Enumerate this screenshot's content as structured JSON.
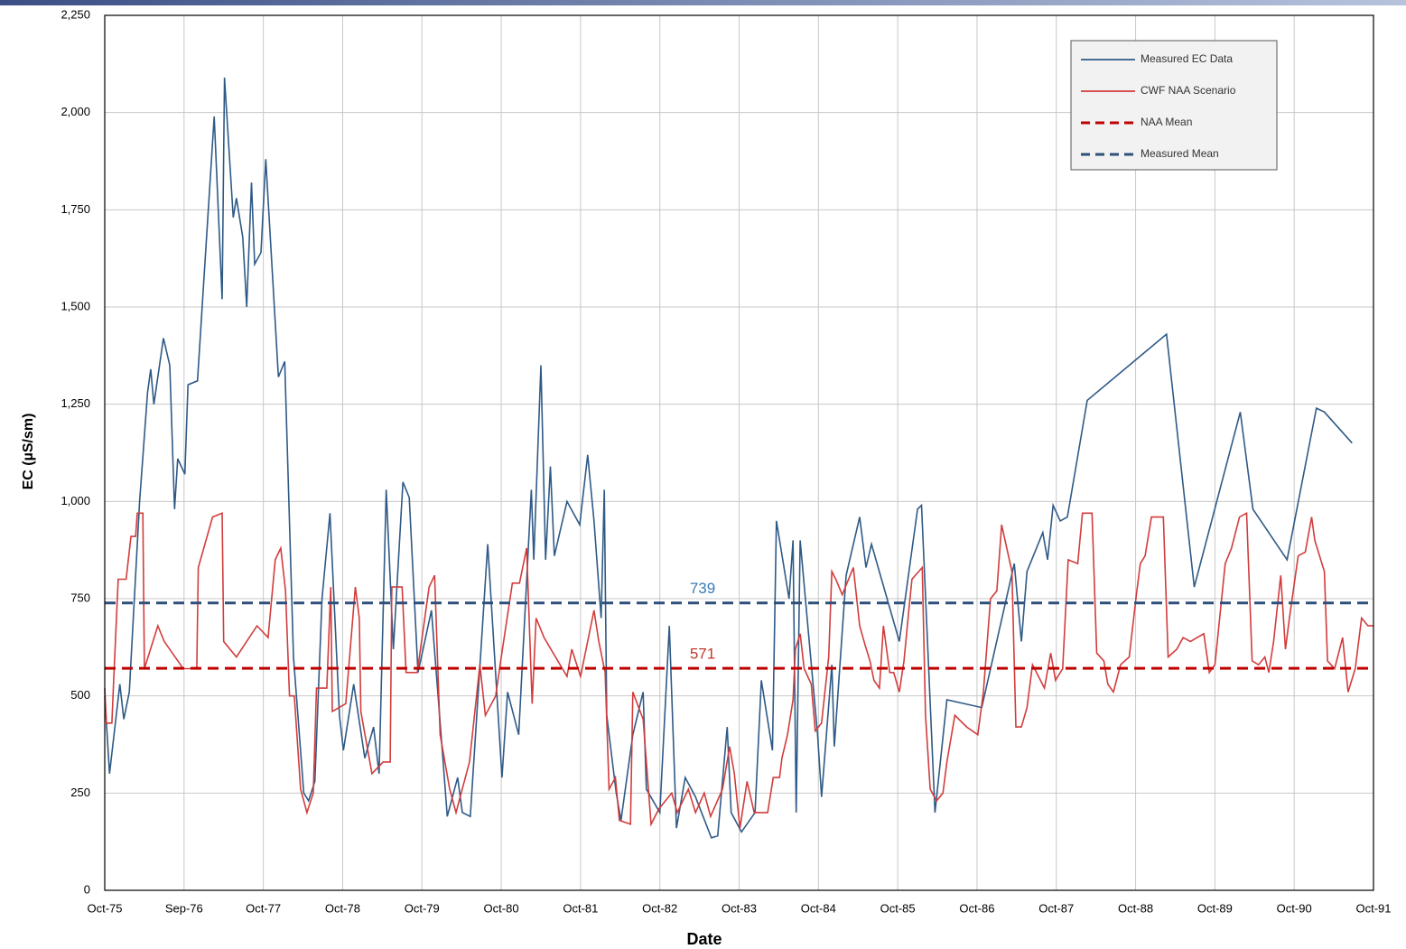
{
  "chart_data": {
    "type": "line",
    "xlabel": "Date",
    "ylabel": "EC  (µS/sm)",
    "xlim": [
      1975.75,
      1991.75
    ],
    "xticks": [
      {
        "value": 1975.75,
        "label": "Oct-75"
      },
      {
        "value": 1976.75,
        "label": "Sep-76"
      },
      {
        "value": 1977.75,
        "label": "Oct-77"
      },
      {
        "value": 1978.75,
        "label": "Oct-78"
      },
      {
        "value": 1979.75,
        "label": "Oct-79"
      },
      {
        "value": 1980.75,
        "label": "Oct-80"
      },
      {
        "value": 1981.75,
        "label": "Oct-81"
      },
      {
        "value": 1982.75,
        "label": "Oct-82"
      },
      {
        "value": 1983.75,
        "label": "Oct-83"
      },
      {
        "value": 1984.75,
        "label": "Oct-84"
      },
      {
        "value": 1985.75,
        "label": "Oct-85"
      },
      {
        "value": 1986.75,
        "label": "Oct-86"
      },
      {
        "value": 1987.75,
        "label": "Oct-87"
      },
      {
        "value": 1988.75,
        "label": "Oct-88"
      },
      {
        "value": 1989.75,
        "label": "Oct-89"
      },
      {
        "value": 1990.75,
        "label": "Oct-90"
      },
      {
        "value": 1991.75,
        "label": "Oct-91"
      }
    ],
    "ylim": [
      0,
      2250
    ],
    "yticks": [
      0,
      250,
      500,
      750,
      {
        "value": 1000,
        "label": "1,000"
      },
      {
        "value": 1250,
        "label": "1,250"
      },
      {
        "value": 1500,
        "label": "1,500"
      },
      {
        "value": 1750,
        "label": "1,750"
      },
      {
        "value": 2000,
        "label": "2,000"
      },
      {
        "value": 2250,
        "label": "2,250"
      }
    ],
    "grid": true,
    "legend": "upper right",
    "series": [
      {
        "name": "Measured EC Data",
        "color": "#2f5a86",
        "x": [
          1975.75,
          1975.81,
          1975.94,
          1975.99,
          1976.06,
          1976.19,
          1976.29,
          1976.33,
          1976.37,
          1976.49,
          1976.57,
          1976.63,
          1976.67,
          1976.76,
          1976.8,
          1976.92,
          1977.13,
          1977.23,
          1977.26,
          1977.37,
          1977.41,
          1977.49,
          1977.54,
          1977.6,
          1977.64,
          1977.72,
          1977.78,
          1977.94,
          1978.02,
          1978.13,
          1978.26,
          1978.32,
          1978.4,
          1978.49,
          1978.59,
          1978.71,
          1978.76,
          1978.89,
          1979.03,
          1979.14,
          1979.21,
          1979.3,
          1979.39,
          1979.51,
          1979.59,
          1979.7,
          1979.87,
          1980.01,
          1980.07,
          1980.2,
          1980.26,
          1980.36,
          1980.58,
          1980.76,
          1980.83,
          1980.97,
          1981.13,
          1981.16,
          1981.25,
          1981.31,
          1981.37,
          1981.42,
          1981.58,
          1981.74,
          1981.84,
          1981.92,
          1982.01,
          1982.05,
          1982.08,
          1982.2,
          1982.26,
          1982.41,
          1982.54,
          1982.58,
          1982.75,
          1982.87,
          1982.96,
          1983.07,
          1983.2,
          1983.4,
          1983.48,
          1983.6,
          1983.65,
          1983.78,
          1983.95,
          1984.03,
          1984.17,
          1984.22,
          1984.38,
          1984.43,
          1984.47,
          1984.52,
          1984.74,
          1984.79,
          1984.92,
          1984.95,
          1985.1,
          1985.27,
          1985.35,
          1985.42,
          1985.77,
          1986.0,
          1986.05,
          1986.22,
          1986.37,
          1986.81,
          1987.22,
          1987.31,
          1987.38,
          1987.58,
          1987.64,
          1987.71,
          1987.8,
          1987.89,
          1988.14,
          1989.14,
          1989.49,
          1990.07,
          1990.23,
          1990.66,
          1991.03,
          1991.13,
          1991.48
        ],
        "values": [
          500,
          300,
          530,
          440,
          510,
          1000,
          1280,
          1340,
          1250,
          1420,
          1350,
          980,
          1110,
          1070,
          1300,
          1310,
          1990,
          1520,
          2090,
          1730,
          1780,
          1680,
          1500,
          1820,
          1610,
          1640,
          1880,
          1320,
          1360,
          600,
          250,
          230,
          280,
          750,
          970,
          450,
          360,
          530,
          340,
          420,
          300,
          1030,
          620,
          1050,
          1010,
          560,
          720,
          350,
          190,
          290,
          200,
          190,
          890,
          290,
          510,
          400,
          1030,
          850,
          1350,
          850,
          1090,
          860,
          1000,
          940,
          1120,
          950,
          700,
          1030,
          450,
          250,
          180,
          400,
          510,
          260,
          200,
          680,
          160,
          290,
          240,
          135,
          140,
          420,
          200,
          150,
          200,
          540,
          360,
          950,
          750,
          900,
          200,
          900,
          400,
          240,
          580,
          370,
          810,
          960,
          830,
          890,
          640,
          980,
          990,
          200,
          490,
          470,
          840,
          640,
          820,
          920,
          850,
          990,
          950,
          960,
          1260,
          1430,
          780,
          1230,
          980,
          850,
          1240,
          1230,
          1150
        ]
      },
      {
        "name": "CWF NAA Scenario",
        "color": "#d23c3c",
        "x": [
          1975.75,
          1975.77,
          1975.84,
          1975.86,
          1975.92,
          1976.02,
          1976.08,
          1976.14,
          1976.16,
          1976.23,
          1976.25,
          1976.42,
          1976.5,
          1976.74,
          1976.91,
          1976.93,
          1977.11,
          1977.23,
          1977.25,
          1977.41,
          1977.67,
          1977.81,
          1977.9,
          1977.97,
          1978.03,
          1978.08,
          1978.14,
          1978.22,
          1978.3,
          1978.38,
          1978.42,
          1978.55,
          1978.6,
          1978.62,
          1978.79,
          1978.91,
          1978.96,
          1978.98,
          1979.12,
          1979.26,
          1979.35,
          1979.37,
          1979.5,
          1979.55,
          1979.69,
          1979.84,
          1979.91,
          1979.98,
          1980.1,
          1980.18,
          1980.35,
          1980.48,
          1980.55,
          1980.68,
          1980.75,
          1980.89,
          1980.98,
          1981.07,
          1981.14,
          1981.19,
          1981.29,
          1981.58,
          1981.64,
          1981.75,
          1981.92,
          1981.98,
          1982.06,
          1982.11,
          1982.19,
          1982.24,
          1982.38,
          1982.41,
          1982.54,
          1982.64,
          1982.74,
          1982.9,
          1982.97,
          1983.11,
          1983.2,
          1983.31,
          1983.39,
          1983.54,
          1983.63,
          1983.69,
          1983.76,
          1983.85,
          1983.94,
          1984.11,
          1984.18,
          1984.26,
          1984.29,
          1984.36,
          1984.43,
          1984.46,
          1984.52,
          1984.57,
          1984.66,
          1984.71,
          1984.79,
          1984.88,
          1984.92,
          1984.97,
          1985.05,
          1985.19,
          1985.27,
          1985.34,
          1985.4,
          1985.45,
          1985.52,
          1985.57,
          1985.65,
          1985.7,
          1985.77,
          1985.83,
          1985.89,
          1985.93,
          1986.06,
          1986.1,
          1986.16,
          1986.24,
          1986.32,
          1986.37,
          1986.47,
          1986.62,
          1986.76,
          1986.83,
          1986.92,
          1987.0,
          1987.06,
          1987.19,
          1987.24,
          1987.31,
          1987.38,
          1987.45,
          1987.5,
          1987.6,
          1987.68,
          1987.74,
          1987.83,
          1987.9,
          1988.02,
          1988.08,
          1988.2,
          1988.26,
          1988.35,
          1988.4,
          1988.47,
          1988.56,
          1988.67,
          1988.76,
          1988.81,
          1988.87,
          1988.95,
          1989.1,
          1989.16,
          1989.27,
          1989.35,
          1989.44,
          1989.61,
          1989.68,
          1989.75,
          1989.8,
          1989.88,
          1989.96,
          1990.06,
          1990.15,
          1990.22,
          1990.3,
          1990.38,
          1990.43,
          1990.49,
          1990.58,
          1990.64,
          1990.69,
          1990.8,
          1990.89,
          1990.97,
          1991.01,
          1991.13,
          1991.17,
          1991.26,
          1991.36,
          1991.43,
          1991.52,
          1991.6,
          1991.68,
          1991.75
        ],
        "values": [
          520,
          430,
          430,
          530,
          800,
          800,
          910,
          910,
          970,
          970,
          570,
          680,
          640,
          570,
          570,
          830,
          960,
          970,
          640,
          600,
          680,
          650,
          850,
          880,
          770,
          500,
          500,
          260,
          200,
          250,
          520,
          520,
          780,
          460,
          480,
          780,
          700,
          460,
          300,
          330,
          330,
          780,
          780,
          560,
          560,
          780,
          810,
          400,
          260,
          200,
          330,
          580,
          450,
          500,
          600,
          790,
          790,
          880,
          480,
          700,
          650,
          550,
          620,
          550,
          720,
          640,
          560,
          260,
          290,
          180,
          170,
          510,
          440,
          170,
          210,
          250,
          200,
          260,
          200,
          250,
          190,
          260,
          370,
          300,
          160,
          280,
          200,
          200,
          290,
          290,
          340,
          400,
          490,
          620,
          660,
          570,
          530,
          410,
          430,
          600,
          820,
          800,
          760,
          830,
          680,
          630,
          590,
          540,
          520,
          680,
          560,
          560,
          510,
          590,
          720,
          800,
          830,
          450,
          260,
          230,
          250,
          330,
          450,
          420,
          400,
          510,
          750,
          770,
          940,
          820,
          420,
          420,
          470,
          580,
          560,
          520,
          610,
          540,
          570,
          850,
          840,
          970,
          970,
          610,
          590,
          530,
          510,
          580,
          600,
          760,
          840,
          860,
          960,
          960,
          600,
          620,
          650,
          640,
          660,
          560,
          580,
          680,
          840,
          880,
          960,
          970,
          590,
          580,
          600,
          560,
          640,
          810,
          620,
          700,
          860,
          870,
          960,
          900,
          820,
          590,
          570,
          650,
          510,
          570,
          700,
          680,
          680
        ]
      }
    ],
    "reference_lines": [
      {
        "name": "NAA Mean",
        "color": "#c00000",
        "value": 571
      },
      {
        "name": "Measured Mean",
        "color": "#2e4f7a",
        "value": 739
      }
    ],
    "annotation_colors": [
      "#c0392b",
      "#3a7ab8"
    ]
  }
}
